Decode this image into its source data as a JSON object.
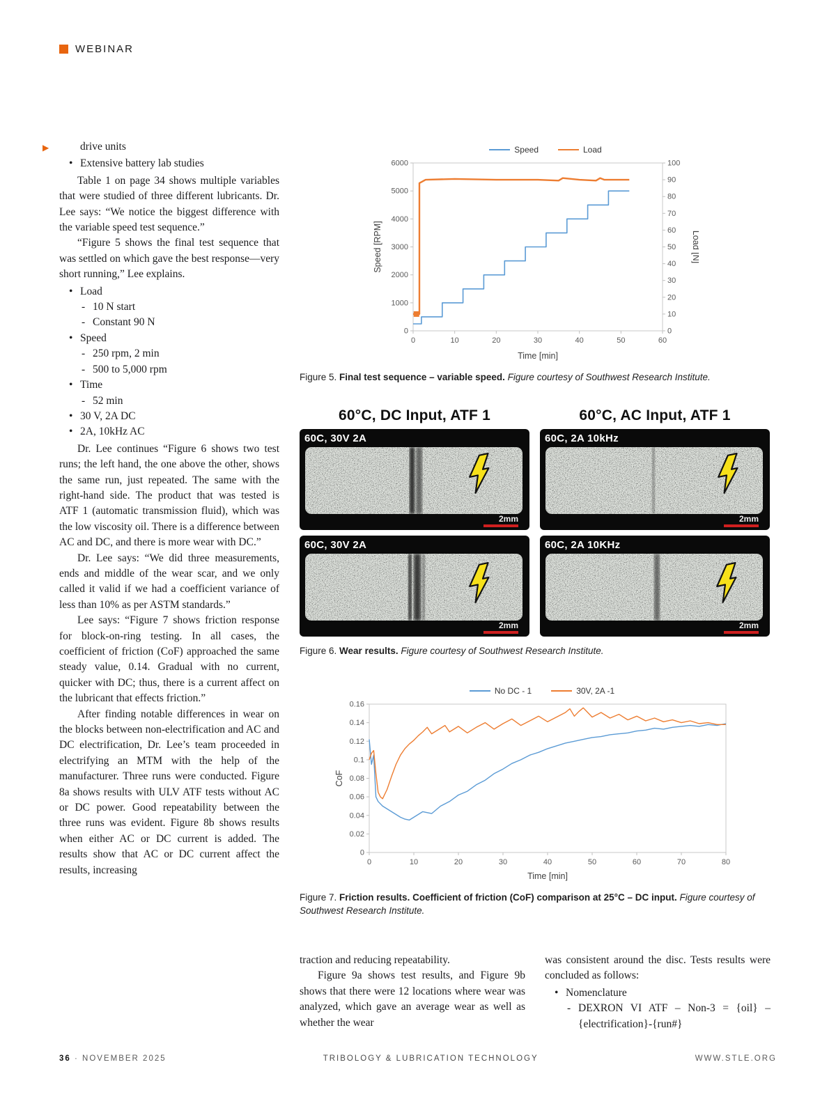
{
  "header": {
    "section_label": "WEBINAR"
  },
  "icons": {
    "continuation_arrow": "▶"
  },
  "left_column": {
    "cont_item": "drive units",
    "bullet_battery": "Extensive battery lab studies",
    "para1": "Table 1 on page 34 shows multiple variables that were studied of three different lubricants. Dr. Lee says: “We notice the biggest difference with the variable speed test sequence.”",
    "para2": "“Figure 5 shows the final test sequence that was settled on which gave the best response—very short running,” Lee explains.",
    "bullets": [
      {
        "label": "Load",
        "subs": [
          "10 N start",
          "Constant 90 N"
        ]
      },
      {
        "label": "Speed",
        "subs": [
          "250 rpm, 2 min",
          "500 to 5,000 rpm"
        ]
      },
      {
        "label": "Time",
        "subs": [
          "52 min"
        ]
      },
      {
        "label": "30 V, 2A DC",
        "subs": []
      },
      {
        "label": "2A, 10kHz AC",
        "subs": []
      }
    ],
    "para3": "Dr. Lee continues “Figure 6 shows two test runs; the left hand, the one above the other, shows the same run, just repeated. The same with the right-hand side. The product that was tested is ATF 1 (automatic transmission fluid), which was the low viscosity oil. There is a difference between AC and DC, and there is more wear with DC.”",
    "para4": "Dr. Lee says: “We did three measurements, ends and middle of the wear scar, and we only called it valid if we had a coefficient variance of less than 10% as per ASTM standards.”",
    "para5": "Lee says: “Figure 7 shows friction response for block-on-ring testing. In all cases, the coefficient of friction (CoF) approached the same steady value, 0.14. Gradual with no current, quicker with DC; thus, there is a current affect on the lubricant that effects friction.”",
    "para6": "After finding notable differences in wear on the blocks between non-electrification and AC and DC electrification, Dr. Lee’s team proceeded in electrifying an MTM with the help of the manufacturer. Three runs were conducted. Figure 8a shows results with ULV ATF tests without AC or DC power. Good repeatability between the three runs was evident. Figure 8b shows results when either AC or DC current is added. The results show that AC or DC current affect the results, increasing"
  },
  "figure5": {
    "caption_prefix": "Figure 5.",
    "caption_bold": "Final test sequence – variable speed.",
    "caption_italic": "Figure courtesy of Southwest Research Institute."
  },
  "figure6": {
    "header_left": "60°C, DC Input, ATF 1",
    "header_right": "60°C, AC Input, ATF 1",
    "panels": [
      {
        "label": "60C, 30V 2A",
        "scale": "2mm"
      },
      {
        "label": "60C, 2A 10kHz",
        "scale": "2mm"
      },
      {
        "label": "60C, 30V 2A",
        "scale": "2mm"
      },
      {
        "label": "60C, 2A 10KHz",
        "scale": "2mm"
      }
    ],
    "caption_prefix": "Figure 6.",
    "caption_bold": "Wear results.",
    "caption_italic": "Figure courtesy of Southwest Research Institute."
  },
  "figure7": {
    "caption_prefix": "Figure 7.",
    "caption_bold": "Friction results. Coefficient of friction (CoF) comparison at 25°C – DC input.",
    "caption_italic": "Figure courtesy of Southwest Research Institute."
  },
  "bottom_columns": {
    "middle_para1": "traction and reducing repeatability.",
    "middle_para2": "Figure 9a shows test results, and Figure 9b shows that there were 12 locations where wear was analyzed, which gave an average wear as well as whether the wear",
    "right_para1": "was consistent around the disc. Tests results were concluded as follows:",
    "right_bullet": "Nomenclature",
    "right_sub": "DEXRON VI ATF – Non-3 = {oil} – {electrification}-{run#}"
  },
  "footer": {
    "page": "36",
    "sep": "·",
    "date": "NOVEMBER 2025",
    "center": "TRIBOLOGY & LUBRICATION TECHNOLOGY",
    "right": "WWW.STLE.ORG"
  },
  "chart_data": [
    {
      "id": "fig5",
      "type": "line",
      "title": "Final test sequence – variable speed",
      "xlabel": "Time [min]",
      "ylabel": "Speed [RPM]",
      "ylabel_right": "Load [N]",
      "xlim": [
        0,
        60
      ],
      "xticks": [
        0,
        10,
        20,
        30,
        40,
        50,
        60
      ],
      "ylim": [
        0,
        6000
      ],
      "yticks": [
        0,
        1000,
        2000,
        3000,
        4000,
        5000,
        6000
      ],
      "ylim_right": [
        0,
        100
      ],
      "yticks_right": [
        0,
        10,
        20,
        30,
        40,
        50,
        60,
        70,
        80,
        90,
        100
      ],
      "grid": false,
      "legend_position": "top",
      "margins": {
        "l": 60,
        "r": 52,
        "t": 8,
        "b": 46
      },
      "legend": [
        {
          "label": "Speed",
          "color": "#5b9bd5"
        },
        {
          "label": "Load",
          "color": "#ed7d31"
        }
      ],
      "series": [
        {
          "name": "Speed",
          "color": "#5b9bd5",
          "axis": "left",
          "width": 1.6,
          "x": [
            0,
            2,
            2,
            7,
            7,
            12,
            12,
            17,
            17,
            22,
            22,
            27,
            27,
            32,
            32,
            37,
            37,
            42,
            42,
            47,
            47,
            52
          ],
          "y": [
            250,
            250,
            500,
            500,
            1000,
            1000,
            1500,
            1500,
            2000,
            2000,
            2500,
            2500,
            3000,
            3000,
            3500,
            3500,
            4000,
            4000,
            4500,
            4500,
            5000,
            5000
          ]
        },
        {
          "name": "Load",
          "color": "#ed7d31",
          "axis": "right",
          "width": 2.4,
          "x": [
            0,
            1.5,
            1.5,
            3,
            10,
            20,
            30,
            35,
            36,
            40,
            44,
            45,
            46,
            52
          ],
          "y": [
            10,
            10,
            88,
            90,
            90.5,
            90,
            90,
            89.5,
            91,
            90,
            89.5,
            91,
            90,
            90
          ],
          "markers": [
            {
              "x": 0.8,
              "y": 10,
              "size": 8
            }
          ]
        }
      ]
    },
    {
      "id": "fig7",
      "type": "line",
      "title": "Coefficient of friction (CoF) comparison at 25°C – DC input",
      "xlabel": "Time [min]",
      "ylabel": "CoF",
      "xlim": [
        0,
        80
      ],
      "xticks": [
        0,
        10,
        20,
        30,
        40,
        50,
        60,
        70,
        80
      ],
      "ylim": [
        0,
        0.16
      ],
      "yticks": [
        0,
        0.02,
        0.04,
        0.06,
        0.08,
        0.1,
        0.12,
        0.14,
        0.16
      ],
      "grid": false,
      "legend_position": "top",
      "margins": {
        "l": 52,
        "r": 16,
        "t": 8,
        "b": 44
      },
      "legend": [
        {
          "label": "No DC - 1",
          "color": "#5b9bd5"
        },
        {
          "label": "30V, 2A -1",
          "color": "#ed7d31"
        }
      ],
      "series": [
        {
          "name": "No DC - 1",
          "color": "#5b9bd5",
          "axis": "left",
          "width": 1.4,
          "x": [
            0,
            0.5,
            1,
            1.5,
            2,
            3,
            4,
            5,
            6,
            7,
            8,
            9,
            10,
            12,
            14,
            16,
            18,
            20,
            22,
            24,
            26,
            28,
            30,
            32,
            34,
            36,
            38,
            40,
            42,
            44,
            46,
            48,
            50,
            52,
            54,
            56,
            58,
            60,
            62,
            64,
            66,
            68,
            70,
            72,
            74,
            76,
            78,
            80
          ],
          "y": [
            0.122,
            0.095,
            0.105,
            0.06,
            0.055,
            0.05,
            0.047,
            0.044,
            0.041,
            0.038,
            0.036,
            0.035,
            0.038,
            0.044,
            0.042,
            0.05,
            0.055,
            0.062,
            0.066,
            0.073,
            0.078,
            0.085,
            0.09,
            0.096,
            0.1,
            0.105,
            0.108,
            0.112,
            0.115,
            0.118,
            0.12,
            0.122,
            0.124,
            0.125,
            0.127,
            0.128,
            0.129,
            0.131,
            0.132,
            0.134,
            0.133,
            0.135,
            0.136,
            0.137,
            0.136,
            0.138,
            0.137,
            0.139
          ]
        },
        {
          "name": "30V, 2A -1",
          "color": "#ed7d31",
          "axis": "left",
          "width": 1.4,
          "x": [
            0,
            0.5,
            1,
            1.5,
            2,
            2.5,
            3,
            4,
            5,
            6,
            7,
            8,
            9,
            10,
            11,
            12,
            13,
            14,
            15,
            16,
            17,
            18,
            20,
            22,
            24,
            26,
            28,
            30,
            32,
            34,
            36,
            38,
            40,
            42,
            44,
            45,
            46,
            47,
            48,
            50,
            52,
            54,
            56,
            58,
            60,
            62,
            64,
            66,
            68,
            70,
            72,
            74,
            76,
            78,
            80
          ],
          "y": [
            0.1,
            0.107,
            0.11,
            0.085,
            0.065,
            0.06,
            0.058,
            0.068,
            0.082,
            0.095,
            0.105,
            0.112,
            0.117,
            0.121,
            0.126,
            0.13,
            0.135,
            0.128,
            0.131,
            0.134,
            0.137,
            0.13,
            0.136,
            0.129,
            0.135,
            0.14,
            0.133,
            0.139,
            0.144,
            0.137,
            0.142,
            0.147,
            0.141,
            0.146,
            0.151,
            0.155,
            0.147,
            0.152,
            0.156,
            0.146,
            0.151,
            0.145,
            0.149,
            0.143,
            0.147,
            0.142,
            0.145,
            0.141,
            0.143,
            0.14,
            0.142,
            0.139,
            0.14,
            0.138,
            0.138
          ]
        }
      ]
    }
  ]
}
